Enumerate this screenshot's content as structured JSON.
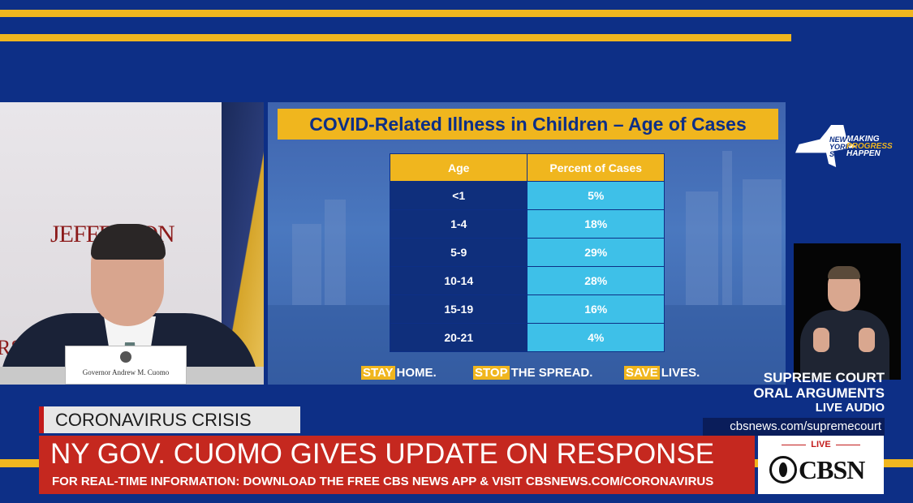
{
  "video": {
    "backdrop_logo": "JEFFERSON",
    "backdrop_logo_partial": "RSON",
    "nameplate": "Governor Andrew M. Cuomo"
  },
  "slide": {
    "title": "COVID-Related Illness in Children – Age of Cases",
    "table": {
      "headers": [
        "Age",
        "Percent of Cases"
      ],
      "rows": [
        {
          "age": "<1",
          "percent": "5%"
        },
        {
          "age": "1-4",
          "percent": "18%"
        },
        {
          "age": "5-9",
          "percent": "29%"
        },
        {
          "age": "10-14",
          "percent": "28%"
        },
        {
          "age": "15-19",
          "percent": "16%"
        },
        {
          "age": "20-21",
          "percent": "4%"
        }
      ]
    },
    "slogans": [
      {
        "highlight": "STAY",
        "rest": "HOME."
      },
      {
        "highlight": "STOP",
        "rest": "THE SPREAD."
      },
      {
        "highlight": "SAVE",
        "rest": "LIVES."
      }
    ]
  },
  "ny_logo": {
    "state_lines": [
      "NEW",
      "YORK",
      "STATE"
    ],
    "tag_line1": "MAKING",
    "tag_line2": "PROGRESS",
    "tag_line3": "HAPPEN"
  },
  "promo": {
    "line1": "SUPREME COURT",
    "line2": "ORAL ARGUMENTS",
    "line3": "LIVE AUDIO",
    "url": "cbsnews.com/supremecourt"
  },
  "lower_third": {
    "section": "CORONAVIRUS CRISIS",
    "headline": "NY GOV. CUOMO GIVES UPDATE ON RESPONSE",
    "ticker": "FOR REAL-TIME INFORMATION: DOWNLOAD THE FREE CBS NEWS APP & VISIT CBSNEWS.COM/CORONAVIRUS"
  },
  "network": {
    "live": "LIVE",
    "logo": "CBSN"
  },
  "colors": {
    "background": "#0d2f86",
    "accent_gold": "#f0b61e",
    "headline_red": "#c5281f",
    "table_cyan": "#3ec0e8"
  }
}
